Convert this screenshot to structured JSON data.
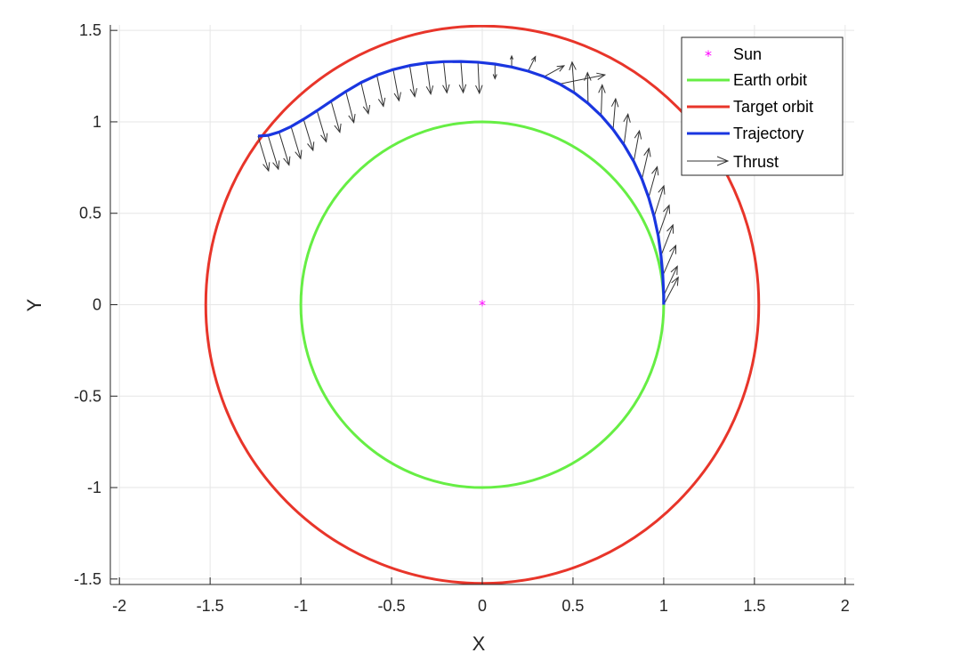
{
  "chart_data": {
    "type": "line",
    "xlabel": "X",
    "ylabel": "Y",
    "xlim": [
      -2.05,
      2.05
    ],
    "ylim": [
      -1.53,
      1.53
    ],
    "xticks": [
      -2,
      -1.5,
      -1,
      -0.5,
      0,
      0.5,
      1,
      1.5,
      2
    ],
    "yticks": [
      -1.5,
      -1,
      -0.5,
      0,
      0.5,
      1,
      1.5
    ],
    "xtick_labels": [
      "-2",
      "-1.5",
      "-1",
      "-0.5",
      "0",
      "0.5",
      "1",
      "1.5",
      "2"
    ],
    "ytick_labels": [
      "-1.5",
      "-1",
      "-0.5",
      "0",
      "0.5",
      "1",
      "1.5"
    ],
    "grid": true,
    "legend_position": "top-right",
    "colors": {
      "sun": "#ff00ff",
      "earth": "#66ee44",
      "target": "#e8352a",
      "trajectory": "#1a36e0",
      "thrust": "#333333"
    },
    "sun": {
      "name": "Sun",
      "x": 0,
      "y": 0
    },
    "earth_orbit": {
      "name": "Earth orbit",
      "radius": 1.0
    },
    "target_orbit": {
      "name": "Target orbit",
      "radius": 1.524
    },
    "trajectory": {
      "name": "Trajectory",
      "x": [
        1.0,
        1.0,
        0.995,
        0.985,
        0.97,
        0.947,
        0.917,
        0.88,
        0.835,
        0.781,
        0.721,
        0.655,
        0.583,
        0.507,
        0.426,
        0.341,
        0.253,
        0.162,
        0.07,
        -0.024,
        -0.118,
        -0.213,
        -0.307,
        -0.4,
        -0.491,
        -0.581,
        -0.668,
        -0.752,
        -0.833,
        -0.911,
        -0.985,
        -1.054,
        -1.12,
        -1.181,
        -1.236
      ],
      "y": [
        0.0,
        0.05,
        0.159,
        0.268,
        0.376,
        0.482,
        0.586,
        0.687,
        0.783,
        0.874,
        0.958,
        1.034,
        1.101,
        1.159,
        1.207,
        1.247,
        1.277,
        1.3,
        1.316,
        1.326,
        1.33,
        1.329,
        1.322,
        1.308,
        1.286,
        1.255,
        1.215,
        1.166,
        1.113,
        1.061,
        1.014,
        0.974,
        0.944,
        0.926,
        0.922
      ]
    },
    "thrust": {
      "name": "Thrust",
      "x": [
        1.0,
        1.0,
        0.995,
        0.985,
        0.97,
        0.947,
        0.917,
        0.88,
        0.835,
        0.781,
        0.721,
        0.655,
        0.583,
        0.507,
        0.426,
        0.341,
        0.253,
        0.162,
        0.07,
        -0.024,
        -0.118,
        -0.213,
        -0.307,
        -0.4,
        -0.491,
        -0.581,
        -0.668,
        -0.752,
        -0.833,
        -0.911,
        -0.985,
        -1.054,
        -1.12,
        -1.181,
        -1.236
      ],
      "y": [
        0.0,
        0.05,
        0.159,
        0.268,
        0.376,
        0.482,
        0.586,
        0.687,
        0.783,
        0.874,
        0.958,
        1.034,
        1.101,
        1.159,
        1.207,
        1.247,
        1.277,
        1.3,
        1.316,
        1.326,
        1.33,
        1.329,
        1.322,
        1.308,
        1.286,
        1.255,
        1.215,
        1.166,
        1.113,
        1.061,
        1.014,
        0.974,
        0.944,
        0.926,
        0.922
      ],
      "u": [
        0.08,
        0.075,
        0.072,
        0.066,
        0.06,
        0.054,
        0.047,
        0.039,
        0.031,
        0.022,
        0.014,
        0.006,
        -0.003,
        -0.012,
        0.25,
        0.11,
        0.04,
        0.0,
        0.0,
        0.008,
        0.013,
        0.018,
        0.023,
        0.028,
        0.032,
        0.036,
        0.04,
        0.044,
        0.048,
        0.051,
        0.052,
        0.053,
        0.055,
        0.057,
        0.058
      ],
      "v": [
        0.15,
        0.16,
        0.165,
        0.168,
        0.168,
        0.168,
        0.168,
        0.168,
        0.168,
        0.168,
        0.168,
        0.168,
        0.168,
        0.168,
        0.05,
        0.06,
        0.08,
        0.06,
        -0.08,
        -0.17,
        -0.17,
        -0.17,
        -0.17,
        -0.17,
        -0.17,
        -0.17,
        -0.17,
        -0.17,
        -0.17,
        -0.17,
        -0.17,
        -0.175,
        -0.18,
        -0.185,
        -0.19
      ]
    }
  }
}
